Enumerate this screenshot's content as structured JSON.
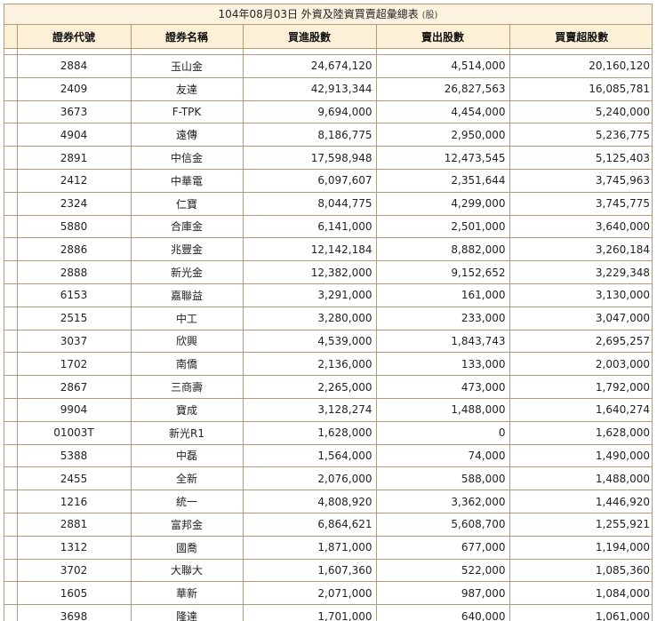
{
  "report": {
    "title": "104年08月03日 外資及陸資買賣超彙總表",
    "unit": "(股)"
  },
  "columns": {
    "code": "證券代號",
    "name": "證券名稱",
    "buy": "買進股數",
    "sell": "賣出股數",
    "net": "買賣超股數"
  },
  "rows": [
    {
      "code": "2884",
      "name": "玉山金",
      "buy": "24,674,120",
      "sell": "4,514,000",
      "net": "20,160,120"
    },
    {
      "code": "2409",
      "name": "友達",
      "buy": "42,913,344",
      "sell": "26,827,563",
      "net": "16,085,781"
    },
    {
      "code": "3673",
      "name": "F-TPK",
      "buy": "9,694,000",
      "sell": "4,454,000",
      "net": "5,240,000"
    },
    {
      "code": "4904",
      "name": "遠傳",
      "buy": "8,186,775",
      "sell": "2,950,000",
      "net": "5,236,775"
    },
    {
      "code": "2891",
      "name": "中信金",
      "buy": "17,598,948",
      "sell": "12,473,545",
      "net": "5,125,403"
    },
    {
      "code": "2412",
      "name": "中華電",
      "buy": "6,097,607",
      "sell": "2,351,644",
      "net": "3,745,963"
    },
    {
      "code": "2324",
      "name": "仁寶",
      "buy": "8,044,775",
      "sell": "4,299,000",
      "net": "3,745,775"
    },
    {
      "code": "5880",
      "name": "合庫金",
      "buy": "6,141,000",
      "sell": "2,501,000",
      "net": "3,640,000"
    },
    {
      "code": "2886",
      "name": "兆豐金",
      "buy": "12,142,184",
      "sell": "8,882,000",
      "net": "3,260,184"
    },
    {
      "code": "2888",
      "name": "新光金",
      "buy": "12,382,000",
      "sell": "9,152,652",
      "net": "3,229,348"
    },
    {
      "code": "6153",
      "name": "嘉聯益",
      "buy": "3,291,000",
      "sell": "161,000",
      "net": "3,130,000"
    },
    {
      "code": "2515",
      "name": "中工",
      "buy": "3,280,000",
      "sell": "233,000",
      "net": "3,047,000"
    },
    {
      "code": "3037",
      "name": "欣興",
      "buy": "4,539,000",
      "sell": "1,843,743",
      "net": "2,695,257"
    },
    {
      "code": "1702",
      "name": "南僑",
      "buy": "2,136,000",
      "sell": "133,000",
      "net": "2,003,000"
    },
    {
      "code": "2867",
      "name": "三商壽",
      "buy": "2,265,000",
      "sell": "473,000",
      "net": "1,792,000"
    },
    {
      "code": "9904",
      "name": "寶成",
      "buy": "3,128,274",
      "sell": "1,488,000",
      "net": "1,640,274"
    },
    {
      "code": "01003T",
      "name": "新光R1",
      "buy": "1,628,000",
      "sell": "0",
      "net": "1,628,000"
    },
    {
      "code": "5388",
      "name": "中磊",
      "buy": "1,564,000",
      "sell": "74,000",
      "net": "1,490,000"
    },
    {
      "code": "2455",
      "name": "全新",
      "buy": "2,076,000",
      "sell": "588,000",
      "net": "1,488,000"
    },
    {
      "code": "1216",
      "name": "統一",
      "buy": "4,808,920",
      "sell": "3,362,000",
      "net": "1,446,920"
    },
    {
      "code": "2881",
      "name": "富邦金",
      "buy": "6,864,621",
      "sell": "5,608,700",
      "net": "1,255,921"
    },
    {
      "code": "1312",
      "name": "國喬",
      "buy": "1,871,000",
      "sell": "677,000",
      "net": "1,194,000"
    },
    {
      "code": "3702",
      "name": "大聯大",
      "buy": "1,607,360",
      "sell": "522,000",
      "net": "1,085,360"
    },
    {
      "code": "1605",
      "name": "華新",
      "buy": "2,071,000",
      "sell": "987,000",
      "net": "1,084,000"
    },
    {
      "code": "3698",
      "name": "隆達",
      "buy": "1,701,000",
      "sell": "640,000",
      "net": "1,061,000"
    }
  ]
}
